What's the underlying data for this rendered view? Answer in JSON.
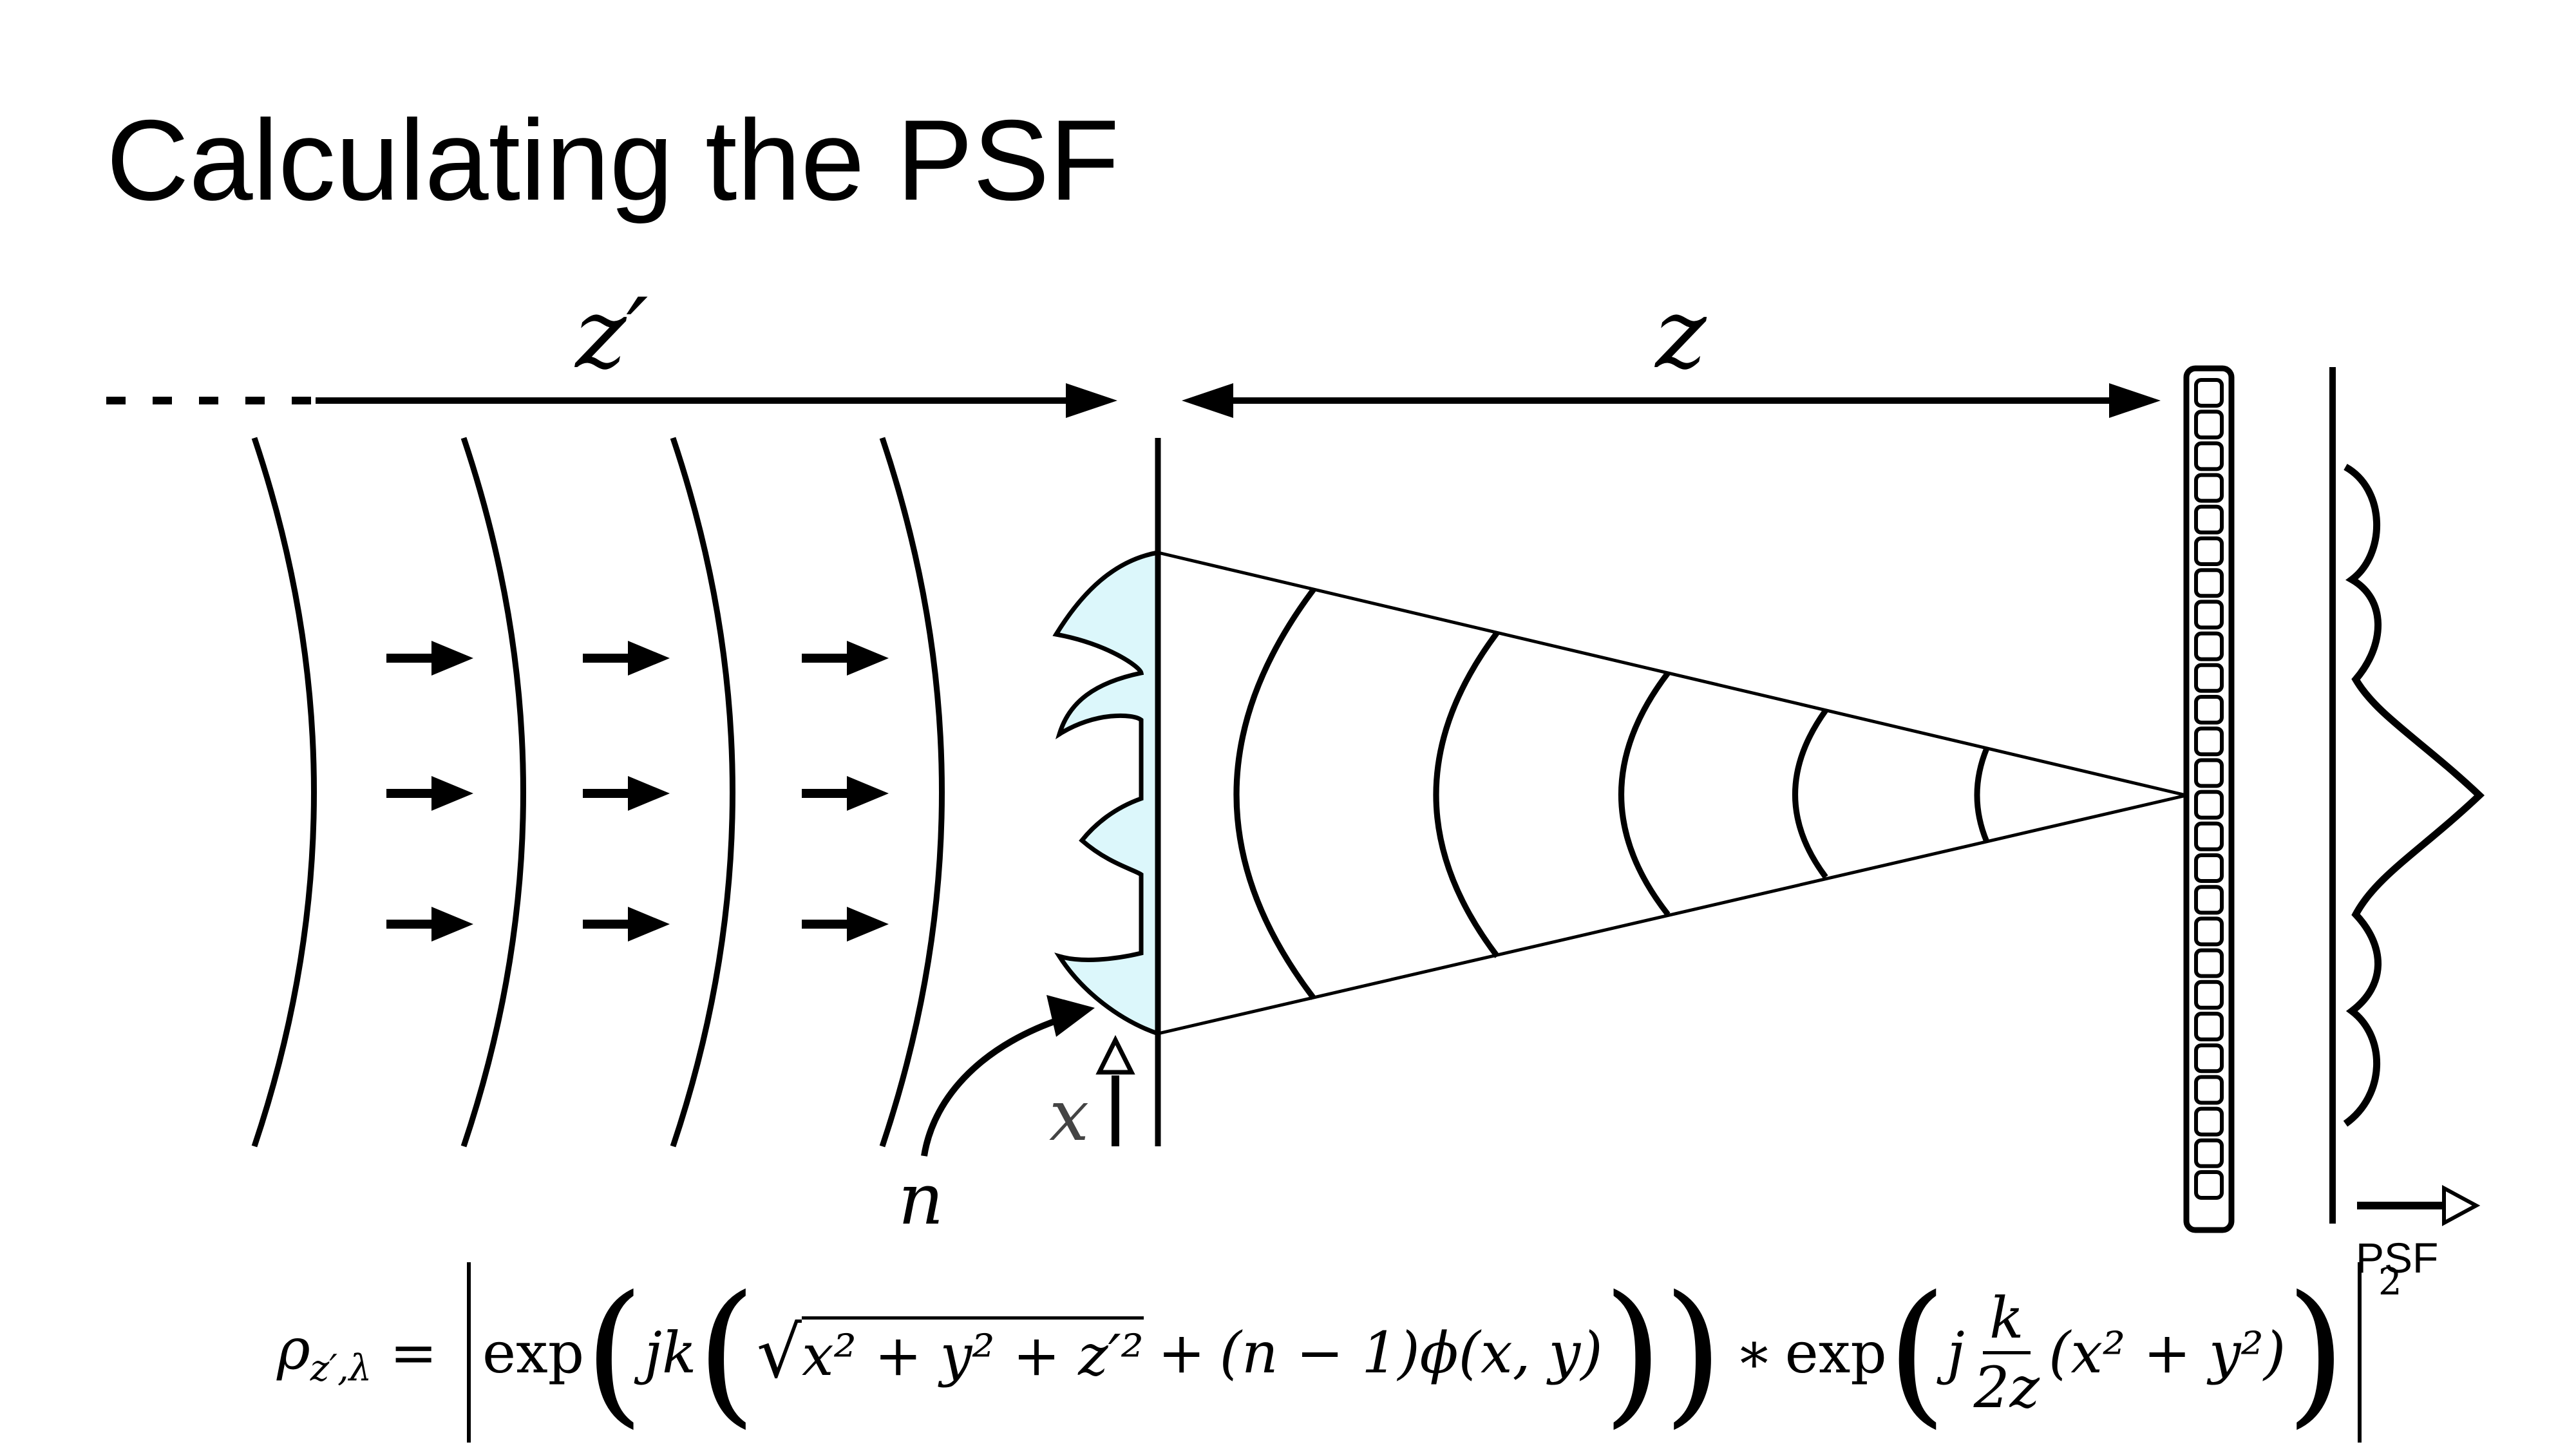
{
  "slide": {
    "title": "Calculating the PSF"
  },
  "diagram": {
    "labels": {
      "z_prime": "z′",
      "z": "z",
      "x": "x",
      "n": "n",
      "psf": "PSF"
    },
    "colors": {
      "mask_fill": "#dcf7fb",
      "stroke": "#000000"
    }
  },
  "equation": {
    "lhs": "ρ",
    "lhs_subscript": "z′,λ",
    "equals": "=",
    "exp1": "exp",
    "jk": "jk",
    "sqrt_body": "x² + y² + z′²",
    "plus": "+",
    "n_term": "(n − 1)ϕ(x, y)",
    "convolve": "∗",
    "exp2": "exp",
    "j": "j",
    "frac_num": "k",
    "frac_den": "2z",
    "xy_term": "(x² + y²)",
    "outer_power": "2"
  }
}
